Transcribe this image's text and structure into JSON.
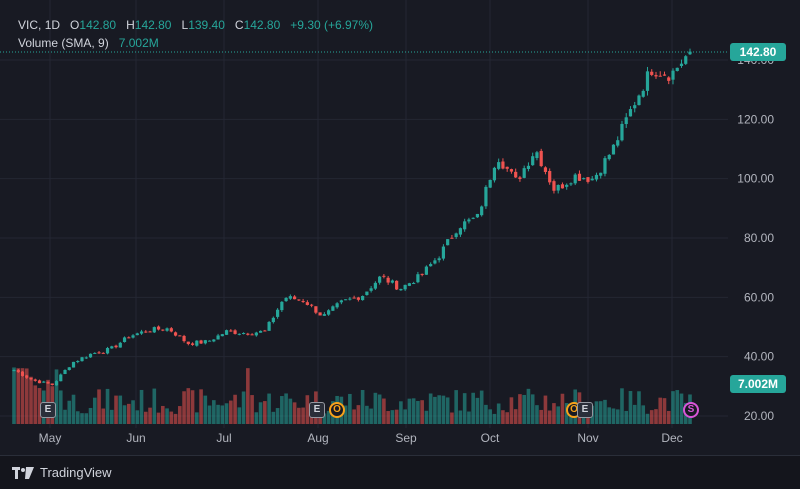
{
  "legend": {
    "symbol": "VIC",
    "interval": "1D",
    "open_label": "O",
    "open": "142.80",
    "high_label": "H",
    "high": "142.80",
    "low_label": "L",
    "low": "139.40",
    "close_label": "C",
    "close": "142.80",
    "change": "+9.30 (+6.97%)",
    "volume_label": "Volume (SMA, 9)",
    "volume_value": "7.002M"
  },
  "price_tag": "142.80",
  "volume_tag": "7.002M",
  "markers": {
    "earnings": "E",
    "options": "O",
    "split": "S"
  },
  "footer": {
    "brand": "TradingView"
  },
  "colors": {
    "up": "#26a69a",
    "down": "#ef5350",
    "background": "#181a23",
    "grid": "#242733",
    "text": "#b2b5be"
  },
  "chart_data": {
    "type": "candlestick",
    "symbol": "VIC",
    "interval": "1D",
    "ylim": [
      18,
      146
    ],
    "y_ticks": [
      "140.00",
      "120.00",
      "100.00",
      "80.00",
      "60.00",
      "40.00",
      "20.00"
    ],
    "x_ticks": [
      "May",
      "Jun",
      "Jul",
      "Aug",
      "Sep",
      "Oct",
      "Nov",
      "Dec"
    ],
    "last_close": 142.8,
    "close_series": [
      {
        "date": "Apr 22",
        "close": 35.5
      },
      {
        "date": "Apr 26",
        "close": 32.0
      },
      {
        "date": "May 2",
        "close": 30.5
      },
      {
        "date": "May 8",
        "close": 38.0
      },
      {
        "date": "May 15",
        "close": 41.0
      },
      {
        "date": "May 22",
        "close": 42.5
      },
      {
        "date": "May 29",
        "close": 47.0
      },
      {
        "date": "Jun 5",
        "close": 49.0
      },
      {
        "date": "Jun 12",
        "close": 49.5
      },
      {
        "date": "Jun 19",
        "close": 44.5
      },
      {
        "date": "Jun 26",
        "close": 45.0
      },
      {
        "date": "Jul 3",
        "close": 48.5
      },
      {
        "date": "Jul 10",
        "close": 48.0
      },
      {
        "date": "Jul 17",
        "close": 48.5
      },
      {
        "date": "Jul 24",
        "close": 60.0
      },
      {
        "date": "Jul 31",
        "close": 59.0
      },
      {
        "date": "Aug 7",
        "close": 53.5
      },
      {
        "date": "Aug 14",
        "close": 58.5
      },
      {
        "date": "Aug 21",
        "close": 60.5
      },
      {
        "date": "Aug 28",
        "close": 67.0
      },
      {
        "date": "Sep 4",
        "close": 63.0
      },
      {
        "date": "Sep 11",
        "close": 67.0
      },
      {
        "date": "Sep 18",
        "close": 74.0
      },
      {
        "date": "Sep 25",
        "close": 84.0
      },
      {
        "date": "Oct 2",
        "close": 87.0
      },
      {
        "date": "Oct 9",
        "close": 108.0
      },
      {
        "date": "Oct 16",
        "close": 99.0
      },
      {
        "date": "Oct 23",
        "close": 110.0
      },
      {
        "date": "Oct 28",
        "close": 96.0
      },
      {
        "date": "Nov 4",
        "close": 101.0
      },
      {
        "date": "Nov 11",
        "close": 100.0
      },
      {
        "date": "Nov 18",
        "close": 110.0
      },
      {
        "date": "Nov 25",
        "close": 124.0
      },
      {
        "date": "Nov 29",
        "close": 137.0
      },
      {
        "date": "Dec 3",
        "close": 135.0
      },
      {
        "date": "Dec 5",
        "close": 142.8
      }
    ],
    "volume_axis_tag": "7.002M"
  }
}
